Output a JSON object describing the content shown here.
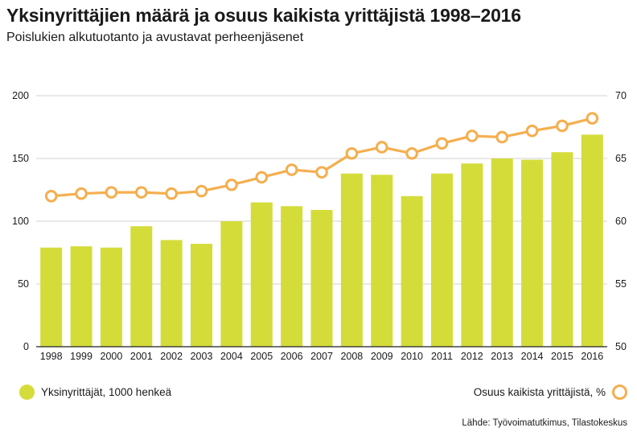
{
  "colors": {
    "bar": "#d4dc3a",
    "line": "#f5ae4e",
    "grid": "#d0d0d0",
    "axis": "#222222"
  },
  "chart_data": {
    "type": "bar+line",
    "title": "Yksinyrittäjien määrä ja osuus kaikista yrittäjistä 1998–2016",
    "subtitle": "Poislukien alkutuotanto ja avustavat perheenjäsenet",
    "categories": [
      "1998",
      "1999",
      "2000",
      "2001",
      "2002",
      "2003",
      "2004",
      "2005",
      "2006",
      "2007",
      "2008",
      "2009",
      "2010",
      "2011",
      "2012",
      "2013",
      "2014",
      "2015",
      "2016"
    ],
    "series": [
      {
        "name": "Yksinyrittäjät, 1000 henkeä",
        "type": "bar",
        "axis": "left",
        "values": [
          79,
          80,
          79,
          96,
          85,
          82,
          100,
          115,
          112,
          109,
          138,
          137,
          120,
          138,
          146,
          150,
          149,
          155,
          169
        ]
      },
      {
        "name": "Osuus kaikista yrittäjistä, %",
        "type": "line",
        "axis": "right",
        "values": [
          62.0,
          62.2,
          62.3,
          62.3,
          62.2,
          62.4,
          62.9,
          63.5,
          64.1,
          63.9,
          65.4,
          65.9,
          65.4,
          66.2,
          66.8,
          66.7,
          67.2,
          67.6,
          68.2
        ]
      }
    ],
    "y_left": {
      "range": [
        0,
        200
      ],
      "ticks": [
        "0",
        "50",
        "100",
        "150",
        "200"
      ]
    },
    "y_right": {
      "range": [
        50,
        70
      ],
      "ticks": [
        "50",
        "55",
        "60",
        "65",
        "70"
      ]
    },
    "grid": true,
    "legend": "bottom"
  },
  "source": "Lähde: Työvoimatutkimus, Tilastokeskus"
}
